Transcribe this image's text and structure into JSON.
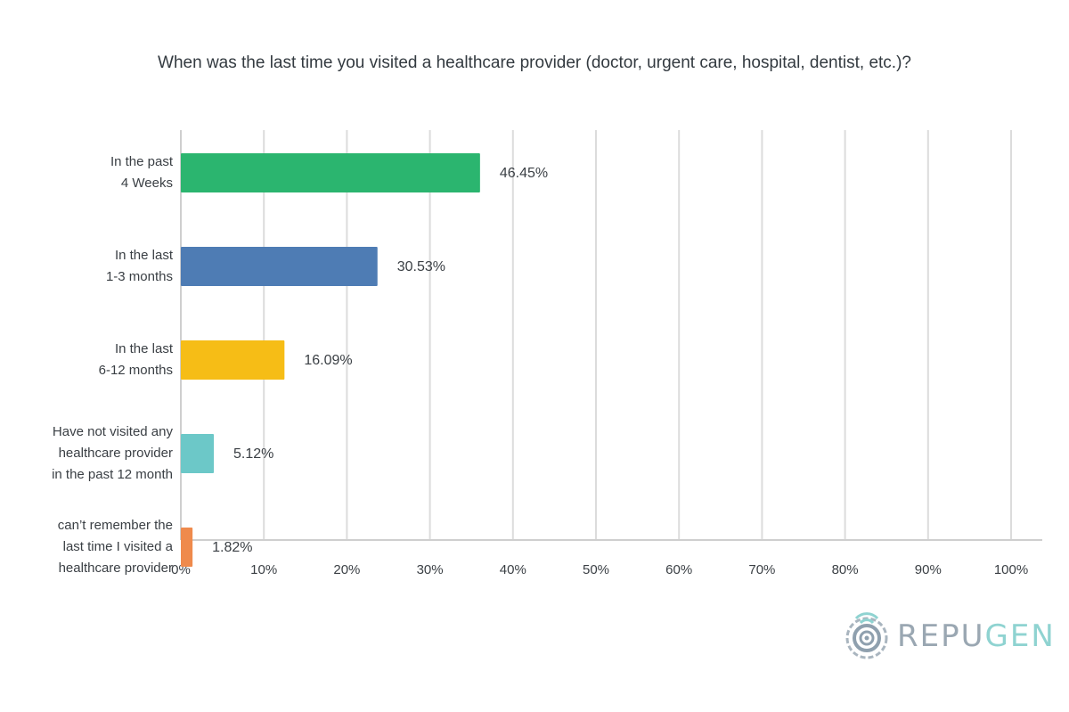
{
  "chart_data": {
    "type": "bar",
    "orientation": "horizontal",
    "title": "When was the last time you visited a healthcare provider (doctor, urgent care, hospital, dentist, etc.)?",
    "categories": [
      "In the past\n4 Weeks",
      "In the last\n1-3 months",
      "In the last\n6-12 months",
      "Have not visited any\nhealthcare provider\nin the past 12 month",
      "can’t remember the\nlast time I visited a\nhealthcare provider"
    ],
    "values": [
      46.45,
      30.53,
      16.09,
      5.12,
      1.82
    ],
    "data_labels": [
      "46.45%",
      "30.53%",
      "16.09%",
      "5.12%",
      "1.82%"
    ],
    "colors": [
      "#2bb56f",
      "#4e7cb4",
      "#f6bd16",
      "#6cc8c8",
      "#ef8a4c"
    ],
    "xlim": [
      0,
      100
    ],
    "xticks": [
      "0%",
      "10%",
      "20%",
      "30%",
      "40%",
      "50%",
      "60%",
      "70%",
      "80%",
      "90%",
      "100%"
    ],
    "grid": true
  },
  "logo": {
    "text_part1": "REPU",
    "text_part2": "GEN"
  }
}
